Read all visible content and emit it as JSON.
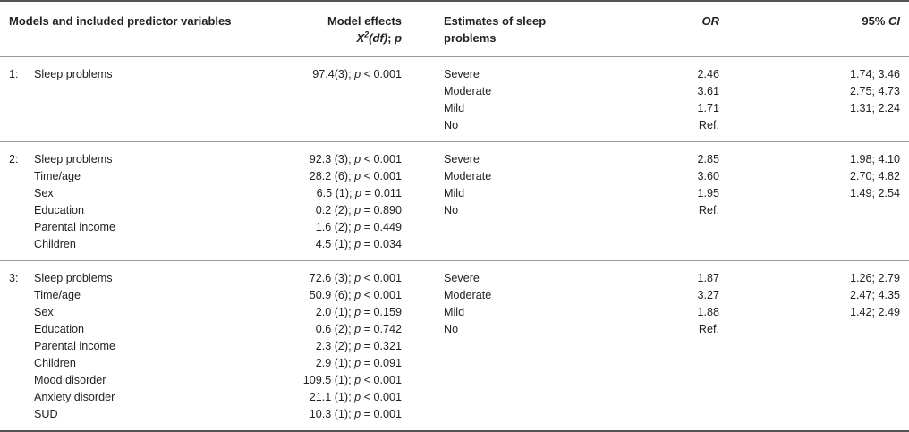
{
  "header": {
    "models": "Models and included predictor variables",
    "effects_line1": "Model effects",
    "effects_x": "X",
    "effects_sup": "2",
    "effects_df": "(df)",
    "effects_sep": "; ",
    "effects_p": "p",
    "estimates_line1": "Estimates of sleep",
    "estimates_line2": "problems",
    "or": "OR",
    "ci_prefix": "95% ",
    "ci_italic": "CI"
  },
  "models": [
    {
      "number": "1:",
      "predictors": [
        {
          "name": "Sleep problems",
          "effect": "97.4(3);",
          "p_op": "<",
          "p_val": "0.001"
        }
      ],
      "estimates": [
        {
          "level": "Severe",
          "or": "2.46",
          "ci": "1.74; 3.46"
        },
        {
          "level": "Moderate",
          "or": "3.61",
          "ci": "2.75; 4.73"
        },
        {
          "level": "Mild",
          "or": "1.71",
          "ci": "1.31; 2.24"
        },
        {
          "level": "No",
          "or": "Ref.",
          "ci": ""
        }
      ]
    },
    {
      "number": "2:",
      "predictors": [
        {
          "name": "Sleep problems",
          "effect": "92.3 (3);",
          "p_op": "<",
          "p_val": "0.001"
        },
        {
          "name": "Time/age",
          "effect": "28.2 (6);",
          "p_op": "<",
          "p_val": "0.001"
        },
        {
          "name": "Sex",
          "effect": "6.5 (1);",
          "p_op": "=",
          "p_val": "0.011"
        },
        {
          "name": "Education",
          "effect": "0.2 (2);",
          "p_op": "=",
          "p_val": "0.890"
        },
        {
          "name": "Parental income",
          "effect": "1.6 (2);",
          "p_op": "=",
          "p_val": "0.449"
        },
        {
          "name": "Children",
          "effect": "4.5 (1);",
          "p_op": "=",
          "p_val": "0.034"
        }
      ],
      "estimates": [
        {
          "level": "Severe",
          "or": "2.85",
          "ci": "1.98; 4.10"
        },
        {
          "level": "Moderate",
          "or": "3.60",
          "ci": "2.70; 4.82"
        },
        {
          "level": "Mild",
          "or": "1.95",
          "ci": "1.49; 2.54"
        },
        {
          "level": "No",
          "or": "Ref.",
          "ci": ""
        }
      ]
    },
    {
      "number": "3:",
      "predictors": [
        {
          "name": "Sleep problems",
          "effect": "72.6 (3);",
          "p_op": "<",
          "p_val": "0.001"
        },
        {
          "name": "Time/age",
          "effect": "50.9 (6);",
          "p_op": "<",
          "p_val": "0.001"
        },
        {
          "name": "Sex",
          "effect": "2.0 (1);",
          "p_op": "=",
          "p_val": "0.159"
        },
        {
          "name": "Education",
          "effect": "0.6 (2);",
          "p_op": "=",
          "p_val": "0.742"
        },
        {
          "name": "Parental income",
          "effect": "2.3 (2);",
          "p_op": "=",
          "p_val": "0.321"
        },
        {
          "name": "Children",
          "effect": "2.9 (1);",
          "p_op": "=",
          "p_val": "0.091"
        },
        {
          "name": "Mood disorder",
          "effect": "109.5 (1);",
          "p_op": "<",
          "p_val": "0.001"
        },
        {
          "name": "Anxiety disorder",
          "effect": "21.1 (1);",
          "p_op": "<",
          "p_val": "0.001"
        },
        {
          "name": "SUD",
          "effect": "10.3 (1);",
          "p_op": "=",
          "p_val": "0.001"
        }
      ],
      "estimates": [
        {
          "level": "Severe",
          "or": "1.87",
          "ci": "1.26; 2.79"
        },
        {
          "level": "Moderate",
          "or": "3.27",
          "ci": "2.47; 4.35"
        },
        {
          "level": "Mild",
          "or": "1.88",
          "ci": "1.42; 2.49"
        },
        {
          "level": "No",
          "or": "Ref.",
          "ci": ""
        }
      ]
    }
  ]
}
